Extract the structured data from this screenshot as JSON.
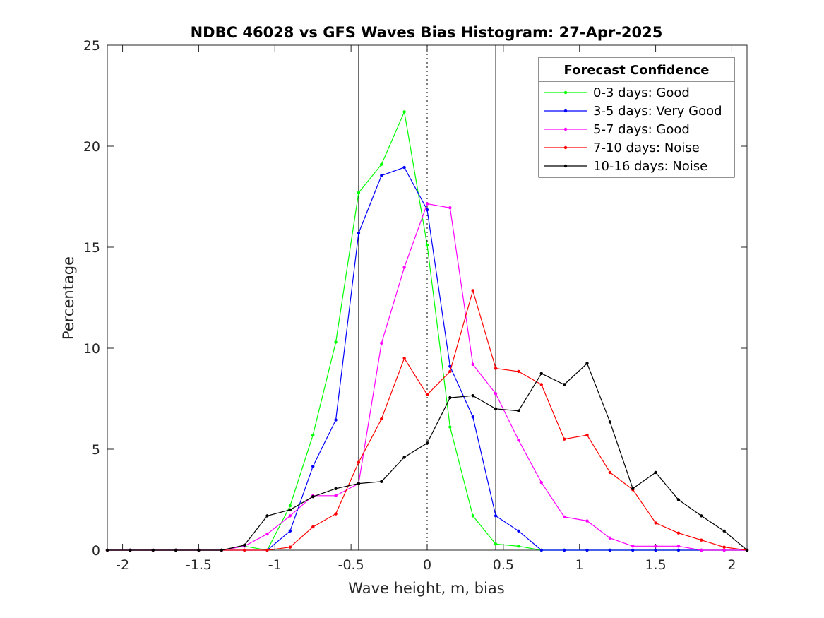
{
  "chart_data": {
    "type": "line",
    "title": "NDBC 46028 vs GFS Waves Bias Histogram: 27-Apr-2025",
    "xlabel": "Wave height, m, bias",
    "ylabel": "Percentage",
    "xlim": [
      -2.1,
      2.1
    ],
    "ylim": [
      0,
      25
    ],
    "xticks": [
      -2,
      -1.5,
      -1,
      -0.5,
      0,
      0.5,
      1,
      1.5,
      2
    ],
    "xtick_labels": [
      "-2",
      "-1.5",
      "-1",
      "-0.5",
      "0",
      "0.5",
      "1",
      "1.5",
      "2"
    ],
    "yticks": [
      0,
      5,
      10,
      15,
      20,
      25
    ],
    "ytick_labels": [
      "0",
      "5",
      "10",
      "15",
      "20",
      "25"
    ],
    "grid": false,
    "reference_lines": [
      {
        "x": -0.45,
        "style": "solid"
      },
      {
        "x": 0,
        "style": "dotted"
      },
      {
        "x": 0.45,
        "style": "solid"
      }
    ],
    "legend": {
      "title": "Forecast Confidence",
      "position": "top-right"
    },
    "x": [
      -2.1,
      -1.95,
      -1.8,
      -1.65,
      -1.5,
      -1.35,
      -1.2,
      -1.05,
      -0.9,
      -0.75,
      -0.6,
      -0.45,
      -0.3,
      -0.15,
      0,
      0.15,
      0.3,
      0.45,
      0.6,
      0.75,
      0.9,
      1.05,
      1.2,
      1.35,
      1.5,
      1.65,
      1.8,
      1.95,
      2.1
    ],
    "series": [
      {
        "name": "0-3 days: Good",
        "color": "#00ff00",
        "values": [
          0,
          0,
          0,
          0,
          0,
          0,
          0.2,
          0,
          2.2,
          5.7,
          10.3,
          17.7,
          19.1,
          21.7,
          15.1,
          6.1,
          1.7,
          0.3,
          0.2,
          0,
          0,
          0,
          0,
          0,
          0,
          0,
          0,
          0,
          0
        ]
      },
      {
        "name": "3-5 days: Very Good",
        "color": "#0000ff",
        "values": [
          0,
          0,
          0,
          0,
          0,
          0,
          0,
          0,
          0.95,
          4.15,
          6.45,
          15.7,
          18.55,
          18.95,
          16.85,
          9.1,
          6.6,
          1.7,
          0.95,
          0,
          0,
          0,
          0,
          0,
          0,
          0,
          0,
          0,
          0
        ]
      },
      {
        "name": "5-7 days: Good",
        "color": "#ff00ff",
        "values": [
          0,
          0,
          0,
          0,
          0,
          0,
          0.2,
          0.8,
          1.7,
          2.7,
          2.7,
          3.3,
          10.25,
          14.0,
          17.15,
          16.95,
          9.2,
          7.75,
          5.45,
          3.35,
          1.65,
          1.45,
          0.6,
          0.2,
          0.2,
          0.2,
          0,
          0,
          0
        ]
      },
      {
        "name": "7-10 days: Noise",
        "color": "#ff0000",
        "values": [
          0,
          0,
          0,
          0,
          0,
          0,
          0,
          0,
          0.15,
          1.15,
          1.8,
          4.35,
          6.5,
          9.5,
          7.7,
          8.85,
          12.85,
          9.0,
          8.85,
          8.2,
          5.5,
          5.7,
          3.85,
          3.0,
          1.35,
          0.85,
          0.5,
          0.15,
          0
        ]
      },
      {
        "name": "10-16 days: Noise",
        "color": "#000000",
        "values": [
          0,
          0,
          0,
          0,
          0,
          0,
          0.25,
          1.7,
          2.0,
          2.65,
          3.05,
          3.3,
          3.4,
          4.6,
          5.3,
          7.55,
          7.65,
          7.0,
          6.9,
          8.75,
          8.2,
          9.25,
          6.35,
          3.05,
          3.85,
          2.5,
          1.7,
          0.95,
          0
        ]
      }
    ]
  }
}
